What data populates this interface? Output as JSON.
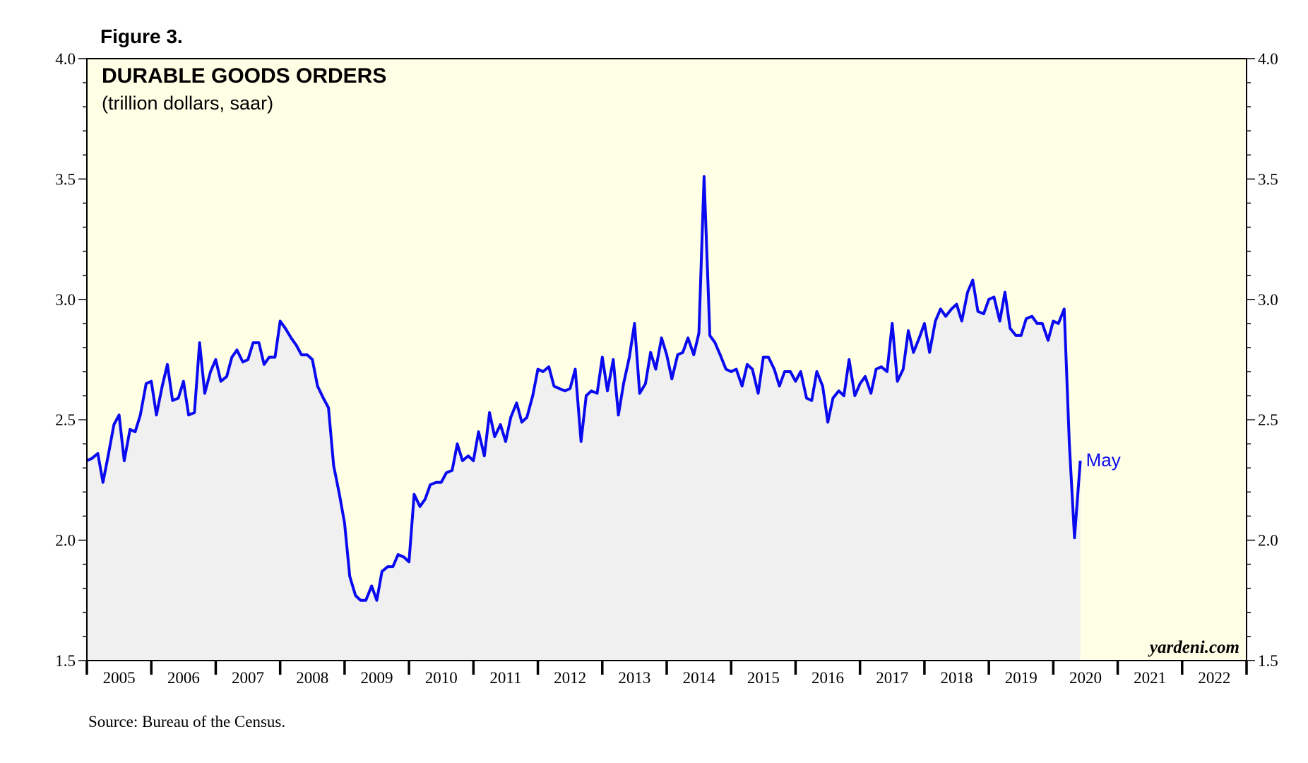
{
  "figure_label": "Figure 3.",
  "source": "Source: Bureau of the Census.",
  "watermark": "yardeni.com",
  "colors": {
    "plot_background": "#FFFFE6",
    "area_fill": "#F0F0F0",
    "line": "#0A0AF0",
    "axis": "#000000"
  },
  "chart_data": {
    "type": "line",
    "title": "DURABLE GOODS ORDERS",
    "subtitle": "(trillion dollars, saar)",
    "xlabel": "",
    "ylabel": "",
    "ylim": [
      1.5,
      4.0
    ],
    "yticks": [
      1.5,
      2.0,
      2.5,
      3.0,
      3.5,
      4.0
    ],
    "ytick_labels": [
      "1.5",
      "2.0",
      "2.5",
      "3.0",
      "3.5",
      "4.0"
    ],
    "y_minor_step": 0.1,
    "xlim": [
      2005,
      2023
    ],
    "x_categories": [
      "2005",
      "2006",
      "2007",
      "2008",
      "2009",
      "2010",
      "2011",
      "2012",
      "2013",
      "2014",
      "2015",
      "2016",
      "2017",
      "2018",
      "2019",
      "2020",
      "2021",
      "2022"
    ],
    "grid": false,
    "last_label": "May",
    "series": [
      {
        "name": "Durable Goods Orders",
        "area": true,
        "points": [
          [
            2005.0,
            2.33
          ],
          [
            2005.08,
            2.34
          ],
          [
            2005.17,
            2.36
          ],
          [
            2005.25,
            2.24
          ],
          [
            2005.33,
            2.35
          ],
          [
            2005.42,
            2.48
          ],
          [
            2005.5,
            2.52
          ],
          [
            2005.58,
            2.33
          ],
          [
            2005.67,
            2.46
          ],
          [
            2005.75,
            2.45
          ],
          [
            2005.83,
            2.52
          ],
          [
            2005.92,
            2.65
          ],
          [
            2006.0,
            2.66
          ],
          [
            2006.08,
            2.52
          ],
          [
            2006.17,
            2.64
          ],
          [
            2006.25,
            2.73
          ],
          [
            2006.33,
            2.58
          ],
          [
            2006.42,
            2.59
          ],
          [
            2006.5,
            2.66
          ],
          [
            2006.58,
            2.52
          ],
          [
            2006.67,
            2.53
          ],
          [
            2006.75,
            2.82
          ],
          [
            2006.83,
            2.61
          ],
          [
            2006.92,
            2.7
          ],
          [
            2007.0,
            2.75
          ],
          [
            2007.08,
            2.66
          ],
          [
            2007.17,
            2.68
          ],
          [
            2007.25,
            2.76
          ],
          [
            2007.33,
            2.79
          ],
          [
            2007.42,
            2.74
          ],
          [
            2007.5,
            2.75
          ],
          [
            2007.58,
            2.82
          ],
          [
            2007.67,
            2.82
          ],
          [
            2007.75,
            2.73
          ],
          [
            2007.83,
            2.76
          ],
          [
            2007.92,
            2.76
          ],
          [
            2008.0,
            2.91
          ],
          [
            2008.08,
            2.88
          ],
          [
            2008.17,
            2.84
          ],
          [
            2008.25,
            2.81
          ],
          [
            2008.33,
            2.77
          ],
          [
            2008.42,
            2.77
          ],
          [
            2008.5,
            2.75
          ],
          [
            2008.58,
            2.64
          ],
          [
            2008.67,
            2.59
          ],
          [
            2008.75,
            2.55
          ],
          [
            2008.83,
            2.31
          ],
          [
            2008.92,
            2.19
          ],
          [
            2009.0,
            2.07
          ],
          [
            2009.08,
            1.85
          ],
          [
            2009.17,
            1.77
          ],
          [
            2009.25,
            1.75
          ],
          [
            2009.33,
            1.75
          ],
          [
            2009.42,
            1.81
          ],
          [
            2009.5,
            1.75
          ],
          [
            2009.58,
            1.87
          ],
          [
            2009.67,
            1.89
          ],
          [
            2009.75,
            1.89
          ],
          [
            2009.83,
            1.94
          ],
          [
            2009.92,
            1.93
          ],
          [
            2010.0,
            1.91
          ],
          [
            2010.08,
            2.19
          ],
          [
            2010.17,
            2.14
          ],
          [
            2010.25,
            2.17
          ],
          [
            2010.33,
            2.23
          ],
          [
            2010.42,
            2.24
          ],
          [
            2010.5,
            2.24
          ],
          [
            2010.58,
            2.28
          ],
          [
            2010.67,
            2.29
          ],
          [
            2010.75,
            2.4
          ],
          [
            2010.83,
            2.33
          ],
          [
            2010.92,
            2.35
          ],
          [
            2011.0,
            2.33
          ],
          [
            2011.08,
            2.45
          ],
          [
            2011.17,
            2.35
          ],
          [
            2011.25,
            2.53
          ],
          [
            2011.33,
            2.43
          ],
          [
            2011.42,
            2.48
          ],
          [
            2011.5,
            2.41
          ],
          [
            2011.58,
            2.51
          ],
          [
            2011.67,
            2.57
          ],
          [
            2011.75,
            2.49
          ],
          [
            2011.83,
            2.51
          ],
          [
            2011.92,
            2.6
          ],
          [
            2012.0,
            2.71
          ],
          [
            2012.08,
            2.7
          ],
          [
            2012.17,
            2.72
          ],
          [
            2012.25,
            2.64
          ],
          [
            2012.33,
            2.63
          ],
          [
            2012.42,
            2.62
          ],
          [
            2012.5,
            2.63
          ],
          [
            2012.58,
            2.71
          ],
          [
            2012.67,
            2.41
          ],
          [
            2012.75,
            2.6
          ],
          [
            2012.83,
            2.62
          ],
          [
            2012.92,
            2.61
          ],
          [
            2013.0,
            2.76
          ],
          [
            2013.08,
            2.62
          ],
          [
            2013.17,
            2.75
          ],
          [
            2013.25,
            2.52
          ],
          [
            2013.33,
            2.65
          ],
          [
            2013.42,
            2.76
          ],
          [
            2013.5,
            2.9
          ],
          [
            2013.58,
            2.61
          ],
          [
            2013.67,
            2.65
          ],
          [
            2013.75,
            2.78
          ],
          [
            2013.83,
            2.71
          ],
          [
            2013.92,
            2.84
          ],
          [
            2014.0,
            2.77
          ],
          [
            2014.08,
            2.67
          ],
          [
            2014.17,
            2.77
          ],
          [
            2014.25,
            2.78
          ],
          [
            2014.33,
            2.84
          ],
          [
            2014.42,
            2.77
          ],
          [
            2014.5,
            2.86
          ],
          [
            2014.58,
            3.51
          ],
          [
            2014.67,
            2.85
          ],
          [
            2014.75,
            2.82
          ],
          [
            2014.83,
            2.77
          ],
          [
            2014.92,
            2.71
          ],
          [
            2015.0,
            2.7
          ],
          [
            2015.08,
            2.71
          ],
          [
            2015.17,
            2.64
          ],
          [
            2015.25,
            2.73
          ],
          [
            2015.33,
            2.71
          ],
          [
            2015.42,
            2.61
          ],
          [
            2015.5,
            2.76
          ],
          [
            2015.58,
            2.76
          ],
          [
            2015.67,
            2.71
          ],
          [
            2015.75,
            2.64
          ],
          [
            2015.83,
            2.7
          ],
          [
            2015.92,
            2.7
          ],
          [
            2016.0,
            2.66
          ],
          [
            2016.08,
            2.7
          ],
          [
            2016.17,
            2.59
          ],
          [
            2016.25,
            2.58
          ],
          [
            2016.33,
            2.7
          ],
          [
            2016.42,
            2.64
          ],
          [
            2016.5,
            2.49
          ],
          [
            2016.58,
            2.59
          ],
          [
            2016.67,
            2.62
          ],
          [
            2016.75,
            2.6
          ],
          [
            2016.83,
            2.75
          ],
          [
            2016.92,
            2.6
          ],
          [
            2017.0,
            2.65
          ],
          [
            2017.08,
            2.68
          ],
          [
            2017.17,
            2.61
          ],
          [
            2017.25,
            2.71
          ],
          [
            2017.33,
            2.72
          ],
          [
            2017.42,
            2.7
          ],
          [
            2017.5,
            2.9
          ],
          [
            2017.58,
            2.66
          ],
          [
            2017.67,
            2.71
          ],
          [
            2017.75,
            2.87
          ],
          [
            2017.83,
            2.78
          ],
          [
            2017.92,
            2.84
          ],
          [
            2018.0,
            2.9
          ],
          [
            2018.08,
            2.78
          ],
          [
            2018.17,
            2.91
          ],
          [
            2018.25,
            2.96
          ],
          [
            2018.33,
            2.93
          ],
          [
            2018.42,
            2.96
          ],
          [
            2018.5,
            2.98
          ],
          [
            2018.58,
            2.91
          ],
          [
            2018.67,
            3.03
          ],
          [
            2018.75,
            3.08
          ],
          [
            2018.83,
            2.95
          ],
          [
            2018.92,
            2.94
          ],
          [
            2019.0,
            3.0
          ],
          [
            2019.08,
            3.01
          ],
          [
            2019.17,
            2.91
          ],
          [
            2019.25,
            3.03
          ],
          [
            2019.33,
            2.88
          ],
          [
            2019.42,
            2.85
          ],
          [
            2019.5,
            2.85
          ],
          [
            2019.58,
            2.92
          ],
          [
            2019.67,
            2.93
          ],
          [
            2019.75,
            2.9
          ],
          [
            2019.83,
            2.9
          ],
          [
            2019.92,
            2.83
          ],
          [
            2020.0,
            2.91
          ],
          [
            2020.08,
            2.9
          ],
          [
            2020.17,
            2.96
          ],
          [
            2020.25,
            2.4
          ],
          [
            2020.33,
            2.01
          ],
          [
            2020.42,
            2.33
          ]
        ]
      }
    ]
  }
}
